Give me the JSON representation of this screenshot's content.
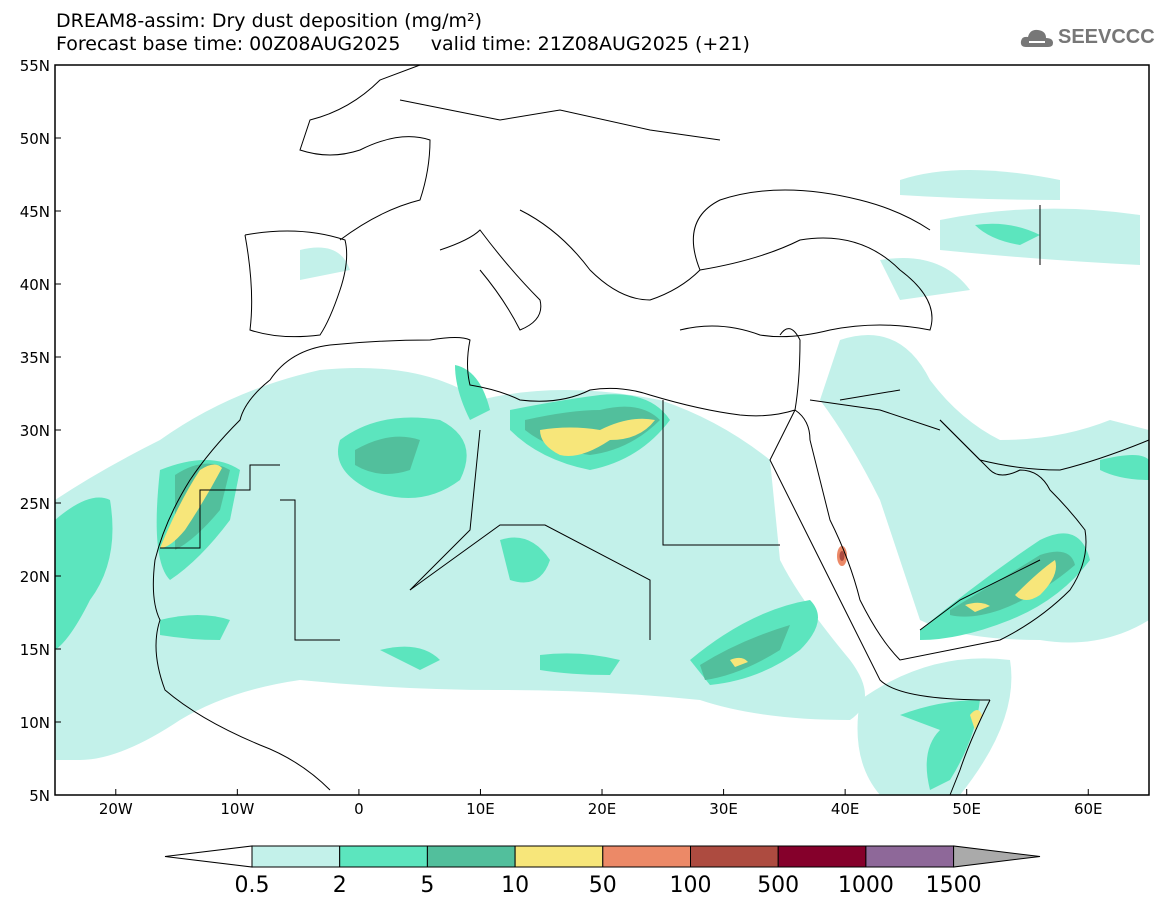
{
  "header": {
    "title": "DREAM8-assim: Dry dust deposition (mg/m²)",
    "forecast_base": "Forecast base time: 00Z08AUG2025",
    "valid_time": "valid time: 21Z08AUG2025 (+21)"
  },
  "logo": {
    "text": "SEEVCCC",
    "icon": "cloud-icon"
  },
  "map": {
    "lat_labels": [
      "55N",
      "50N",
      "45N",
      "40N",
      "35N",
      "30N",
      "25N",
      "20N",
      "15N",
      "10N",
      "5N"
    ],
    "lon_labels": [
      "20W",
      "10W",
      "0",
      "10E",
      "20E",
      "30E",
      "40E",
      "50E",
      "60E"
    ]
  },
  "legend": {
    "values": [
      "0.5",
      "2",
      "5",
      "10",
      "50",
      "100",
      "500",
      "1000",
      "1500"
    ],
    "colors": [
      "#c3f1ea",
      "#5ce5be",
      "#52bf9c",
      "#f7e67a",
      "#ec8967",
      "#ad4b40",
      "#85002b",
      "#8e6899"
    ],
    "over_color": "#aaaaaa",
    "under_color": "#ffffff"
  }
}
